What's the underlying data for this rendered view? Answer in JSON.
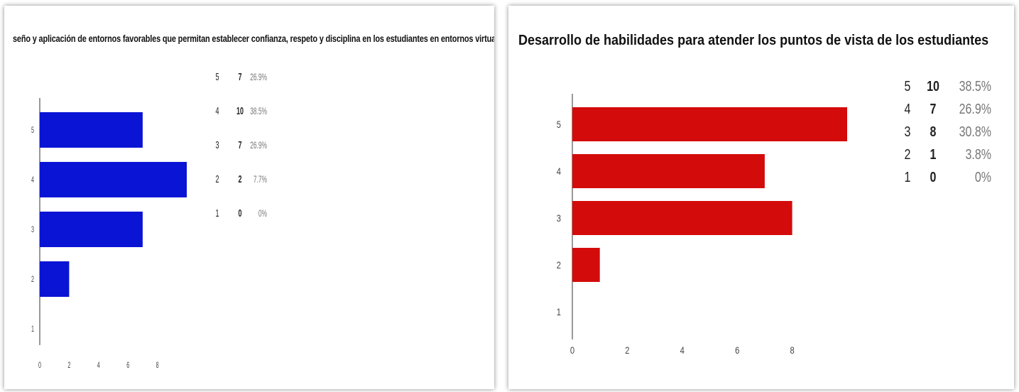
{
  "charts": [
    {
      "id": "chart-1",
      "title": "seño y aplicación de entornos favorables que permitan establecer confianza, respeto y disciplina en los estudiantes en entornos virtuale",
      "color": "#0a14d4",
      "legend": [
        {
          "level": "5",
          "count": "7",
          "percent": "26.9%"
        },
        {
          "level": "4",
          "count": "10",
          "percent": "38.5%"
        },
        {
          "level": "3",
          "count": "7",
          "percent": "26.9%"
        },
        {
          "level": "2",
          "count": "2",
          "percent": "7.7%"
        },
        {
          "level": "1",
          "count": "0",
          "percent": "0%"
        }
      ]
    },
    {
      "id": "chart-2",
      "title": "Desarrollo de habilidades para atender los puntos de vista de los estudiantes",
      "color": "#d40b0b",
      "legend": [
        {
          "level": "5",
          "count": "10",
          "percent": "38.5%"
        },
        {
          "level": "4",
          "count": "7",
          "percent": "26.9%"
        },
        {
          "level": "3",
          "count": "8",
          "percent": "30.8%"
        },
        {
          "level": "2",
          "count": "1",
          "percent": "3.8%"
        },
        {
          "level": "1",
          "count": "0",
          "percent": "0%"
        }
      ]
    }
  ],
  "chart_data": [
    {
      "type": "bar",
      "orientation": "horizontal",
      "title": "seño y aplicación de entornos favorables que permitan establecer confianza, respeto y disciplina en los estudiantes en entornos virtuale",
      "categories": [
        "5",
        "4",
        "3",
        "2",
        "1"
      ],
      "values": [
        7,
        10,
        7,
        2,
        0
      ],
      "xticks": [
        "0",
        "2",
        "4",
        "6",
        "8"
      ],
      "xlim": [
        0,
        10
      ],
      "grid": false,
      "legend_position": "top-right"
    },
    {
      "type": "bar",
      "orientation": "horizontal",
      "title": "Desarrollo de habilidades para atender los puntos de vista de los estudiantes",
      "categories": [
        "5",
        "4",
        "3",
        "2",
        "1"
      ],
      "values": [
        10,
        7,
        8,
        1,
        0
      ],
      "xticks": [
        "0",
        "2",
        "4",
        "6",
        "8"
      ],
      "xlim": [
        0,
        10
      ],
      "grid": false,
      "legend_position": "top-right"
    }
  ]
}
